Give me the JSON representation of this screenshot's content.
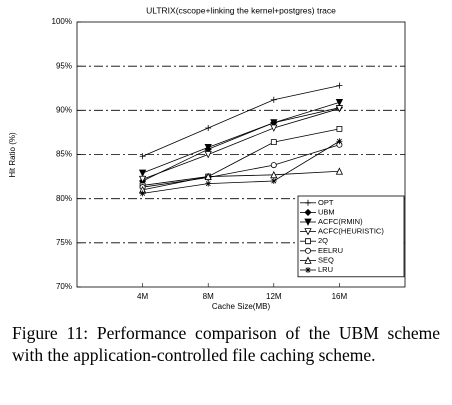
{
  "chart_data": {
    "type": "line",
    "title": "ULTRIX(cscope+linking the kernel+postgres) trace",
    "x_label": "Cache Size(MB)",
    "y_label": "Hit Ratio (%)",
    "categories": [
      "4M",
      "8M",
      "12M",
      "16M"
    ],
    "ylim": [
      70,
      100
    ],
    "yticks": [
      {
        "value": 70,
        "label": "70%"
      },
      {
        "value": 75,
        "label": "75%"
      },
      {
        "value": 80,
        "label": "80%"
      },
      {
        "value": 85,
        "label": "85%"
      },
      {
        "value": 90,
        "label": "90%"
      },
      {
        "value": 95,
        "label": "95%"
      },
      {
        "value": 100,
        "label": "100%"
      }
    ],
    "grid": true,
    "legend": "lower right",
    "series": [
      {
        "name": "OPT",
        "color": "#000000",
        "marker": "plus",
        "values": [
          84.8,
          88.0,
          91.2,
          92.8
        ]
      },
      {
        "name": "UBM",
        "color": "#000000",
        "marker": "diamond-filled",
        "values": [
          82.0,
          85.6,
          88.6,
          90.3
        ]
      },
      {
        "name": "ACFC(RMIN)",
        "color": "#000000",
        "marker": "triangle-down-filled",
        "values": [
          82.9,
          85.8,
          88.6,
          90.9
        ]
      },
      {
        "name": "ACFC(HEURISTIC)",
        "color": "#000000",
        "marker": "triangle-down",
        "values": [
          82.2,
          85.0,
          88.0,
          90.2
        ]
      },
      {
        "name": "2Q",
        "color": "#000000",
        "marker": "square",
        "values": [
          81.5,
          82.5,
          86.4,
          87.9
        ]
      },
      {
        "name": "EELRU",
        "color": "#000000",
        "marker": "circle",
        "values": [
          81.3,
          82.4,
          83.8,
          86.1
        ]
      },
      {
        "name": "SEQ",
        "color": "#000000",
        "marker": "triangle-up",
        "values": [
          81.0,
          82.5,
          82.7,
          83.1
        ]
      },
      {
        "name": "LRU",
        "color": "#000000",
        "marker": "star",
        "values": [
          80.6,
          81.7,
          82.0,
          86.5
        ]
      }
    ]
  },
  "caption": "Figure 11:  Performance comparison of the UBM scheme with the application-controlled file caching scheme."
}
